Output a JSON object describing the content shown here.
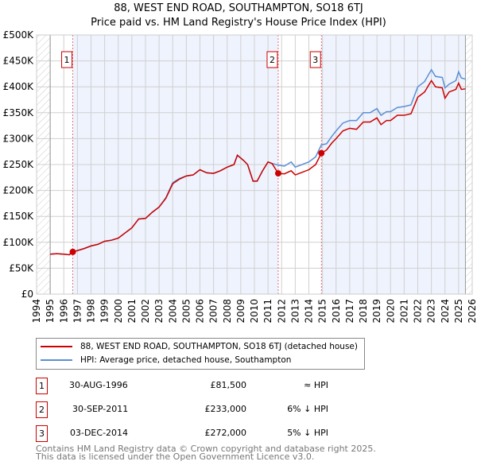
{
  "title": "88, WEST END ROAD, SOUTHAMPTON, SO18 6TJ",
  "subtitle": "Price paid vs. HM Land Registry's House Price Index (HPI)",
  "chart_data": {
    "type": "line",
    "title": "88, WEST END ROAD, SOUTHAMPTON, SO18 6TJ — Price paid vs. HM Land Registry's House Price Index (HPI)",
    "xlim": [
      1994,
      2026
    ],
    "ylim": [
      0,
      500000
    ],
    "yticks": [
      "£0",
      "£50K",
      "£100K",
      "£150K",
      "£200K",
      "£250K",
      "£300K",
      "£350K",
      "£400K",
      "£450K",
      "£500K"
    ],
    "xticks": [
      "1994",
      "1995",
      "1996",
      "1997",
      "1998",
      "1999",
      "2000",
      "2001",
      "2002",
      "2003",
      "2004",
      "2005",
      "2006",
      "2007",
      "2008",
      "2009",
      "2010",
      "2011",
      "2012",
      "2013",
      "2014",
      "2015",
      "2016",
      "2017",
      "2018",
      "2019",
      "2020",
      "2021",
      "2022",
      "2023",
      "2024",
      "2025",
      "2026"
    ],
    "series": [
      {
        "name": "88, WEST END ROAD, SOUTHAMPTON, SO18 6TJ (detached house)",
        "color": "#cc0000",
        "x": [
          1995,
          1995.5,
          1996,
          1996.4,
          1996.66,
          1997,
          1997.5,
          1998,
          1998.5,
          1999,
          1999.5,
          2000,
          2000.5,
          2001,
          2001.5,
          2002,
          2002.5,
          2003,
          2003.5,
          2004,
          2004.5,
          2005,
          2005.5,
          2006,
          2006.5,
          2007,
          2007.5,
          2008,
          2008.5,
          2008.75,
          2009.2,
          2009.5,
          2009.9,
          2010.2,
          2010.6,
          2011.0,
          2011.3,
          2011.75,
          2012.2,
          2012.7,
          2013.0,
          2013.5,
          2014.0,
          2014.5,
          2014.92,
          2015.3,
          2015.7,
          2016.0,
          2016.5,
          2017.0,
          2017.5,
          2018.0,
          2018.5,
          2019.0,
          2019.3,
          2019.7,
          2020.0,
          2020.5,
          2021.0,
          2021.5,
          2022.0,
          2022.5,
          2023.0,
          2023.3,
          2023.8,
          2024.0,
          2024.3,
          2024.8,
          2025.0,
          2025.2,
          2025.5
        ],
        "y": [
          77000,
          78000,
          77000,
          76000,
          81500,
          84000,
          88000,
          93000,
          96000,
          102000,
          104000,
          108000,
          118000,
          128000,
          145000,
          146000,
          158000,
          168000,
          185000,
          213000,
          222000,
          228000,
          230000,
          240000,
          234000,
          233000,
          238000,
          245000,
          250000,
          268000,
          258000,
          250000,
          218000,
          218000,
          238000,
          255000,
          252000,
          233000,
          232000,
          238000,
          230000,
          235000,
          240000,
          250000,
          272000,
          278000,
          292000,
          300000,
          315000,
          320000,
          318000,
          332000,
          332000,
          340000,
          327000,
          335000,
          335000,
          345000,
          345000,
          348000,
          380000,
          390000,
          412000,
          400000,
          398000,
          378000,
          390000,
          395000,
          407000,
          395000,
          396000
        ]
      },
      {
        "name": "HPI: Average price, detached house, Southampton",
        "color": "#5b8fd4",
        "x": [
          1995,
          1995.5,
          1996,
          1996.4,
          1996.66,
          1997,
          1997.5,
          1998,
          1998.5,
          1999,
          1999.5,
          2000,
          2000.5,
          2001,
          2001.5,
          2002,
          2002.5,
          2003,
          2003.5,
          2004,
          2004.5,
          2005,
          2005.5,
          2006,
          2006.5,
          2007,
          2007.5,
          2008,
          2008.5,
          2008.75,
          2009.2,
          2009.5,
          2009.9,
          2010.2,
          2010.6,
          2011.0,
          2011.3,
          2011.75,
          2012.2,
          2012.7,
          2013.0,
          2013.5,
          2014.0,
          2014.5,
          2014.92,
          2015.3,
          2015.7,
          2016.0,
          2016.5,
          2017.0,
          2017.5,
          2018.0,
          2018.5,
          2019.0,
          2019.3,
          2019.7,
          2020.0,
          2020.5,
          2021.0,
          2021.5,
          2022.0,
          2022.5,
          2023.0,
          2023.3,
          2023.8,
          2024.0,
          2024.3,
          2024.8,
          2025.0,
          2025.2,
          2025.5
        ],
        "y": [
          77000,
          78000,
          77000,
          76000,
          81500,
          84000,
          88000,
          93000,
          96000,
          102000,
          104000,
          108000,
          118000,
          128000,
          145000,
          146000,
          158000,
          168000,
          186000,
          215000,
          223000,
          228000,
          230000,
          240000,
          234000,
          233000,
          238000,
          245000,
          250000,
          268000,
          258000,
          250000,
          218000,
          218000,
          238000,
          255000,
          252000,
          249000,
          247000,
          255000,
          245000,
          250000,
          255000,
          265000,
          288000,
          290000,
          305000,
          315000,
          330000,
          335000,
          335000,
          350000,
          350000,
          358000,
          345000,
          352000,
          352000,
          360000,
          362000,
          365000,
          400000,
          410000,
          433000,
          420000,
          418000,
          398000,
          405000,
          412000,
          429000,
          417000,
          415000
        ]
      }
    ],
    "sales": [
      {
        "label": "1",
        "x": 1996.66,
        "y": 81500,
        "date": "30-AUG-1996",
        "price": "£81,500",
        "hpi": "≈ HPI"
      },
      {
        "label": "2",
        "x": 2011.75,
        "y": 233000,
        "date": "30-SEP-2011",
        "price": "£233,000",
        "hpi": "6% ↓ HPI"
      },
      {
        "label": "3",
        "x": 2014.92,
        "y": 272000,
        "date": "03-DEC-2014",
        "price": "£272,000",
        "hpi": "5% ↓ HPI"
      }
    ],
    "shaded_color": "#eef3fd"
  },
  "footer": [
    "Contains HM Land Registry data © Crown copyright and database right 2025.",
    "This data is licensed under the Open Government Licence v3.0."
  ]
}
